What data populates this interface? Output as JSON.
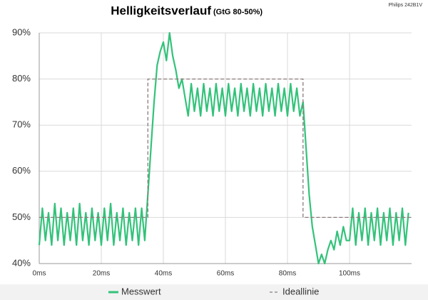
{
  "chart_data": {
    "type": "line",
    "title": "Helligkeitsverlauf",
    "subtitle": "(GtG 80-50%)",
    "annotation": "Philips 242B1V",
    "xlim": [
      0,
      120
    ],
    "ylim": [
      40,
      90
    ],
    "xticks": [
      {
        "value": 0,
        "label": "0ms"
      },
      {
        "value": 20,
        "label": "20ms"
      },
      {
        "value": 40,
        "label": "40ms"
      },
      {
        "value": 60,
        "label": "60ms"
      },
      {
        "value": 80,
        "label": "80ms"
      },
      {
        "value": 100,
        "label": "100ms"
      }
    ],
    "yticks": [
      {
        "value": 40,
        "label": "40%"
      },
      {
        "value": 50,
        "label": "50%"
      },
      {
        "value": 60,
        "label": "60%"
      },
      {
        "value": 70,
        "label": "70%"
      },
      {
        "value": 80,
        "label": "80%"
      },
      {
        "value": 90,
        "label": "90%"
      }
    ],
    "grid": true,
    "legend": "bottom",
    "series": [
      {
        "name": "Messwert",
        "color": "#33c27a",
        "dash": false,
        "x": [
          0,
          1,
          2,
          3,
          4,
          5,
          6,
          7,
          8,
          9,
          10,
          11,
          12,
          13,
          14,
          15,
          16,
          17,
          18,
          19,
          20,
          21,
          22,
          23,
          24,
          25,
          26,
          27,
          28,
          29,
          30,
          31,
          32,
          33,
          34,
          35,
          36,
          37,
          38,
          39,
          40,
          41,
          42,
          43,
          44,
          45,
          46,
          47,
          48,
          49,
          50,
          51,
          52,
          53,
          54,
          55,
          56,
          57,
          58,
          59,
          60,
          61,
          62,
          63,
          64,
          65,
          66,
          67,
          68,
          69,
          70,
          71,
          72,
          73,
          74,
          75,
          76,
          77,
          78,
          79,
          80,
          81,
          82,
          83,
          84,
          85,
          86,
          87,
          88,
          89,
          90,
          91,
          92,
          93,
          94,
          95,
          96,
          97,
          98,
          99,
          100,
          101,
          102,
          103,
          104,
          105,
          106,
          107,
          108,
          109,
          110,
          111,
          112,
          113,
          114,
          115,
          116,
          117,
          118,
          119
        ],
        "values": [
          44,
          52,
          45,
          51,
          44,
          53,
          45,
          52,
          44,
          51,
          45,
          52,
          44,
          53,
          45,
          51,
          44,
          52,
          45,
          51,
          44,
          52,
          45,
          53,
          44,
          51,
          45,
          52,
          44,
          51,
          45,
          52,
          44,
          52,
          45,
          55,
          65,
          75,
          83,
          86,
          88,
          84,
          90,
          85,
          82,
          78,
          80,
          76,
          72,
          79,
          73,
          78,
          72,
          79,
          73,
          78,
          72,
          79,
          73,
          78,
          72,
          79,
          73,
          78,
          72,
          79,
          73,
          78,
          72,
          79,
          73,
          78,
          72,
          79,
          73,
          78,
          72,
          79,
          73,
          78,
          72,
          79,
          73,
          78,
          72,
          75,
          65,
          55,
          48,
          44,
          40,
          42,
          40,
          43,
          45,
          43,
          47,
          44,
          48,
          45,
          45,
          52,
          44,
          51,
          45,
          52,
          44,
          51,
          45,
          52,
          44,
          51,
          45,
          52,
          44,
          51,
          45,
          52,
          44,
          51
        ]
      },
      {
        "name": "Ideallinie",
        "color": "#8c7b7b",
        "dash": true,
        "x": [
          0,
          35,
          35,
          85,
          85,
          120
        ],
        "values": [
          50,
          50,
          80,
          80,
          50,
          50
        ]
      }
    ]
  }
}
